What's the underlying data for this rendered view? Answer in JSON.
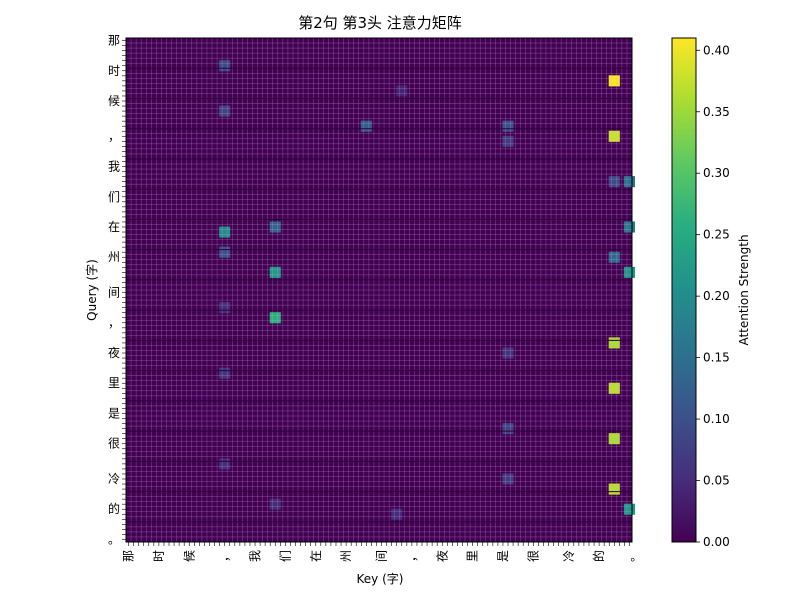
{
  "chart_data": {
    "type": "heatmap",
    "title": "第2句 第3头 注意力矩阵",
    "xlabel": "Key (字)",
    "ylabel": "Query (字)",
    "colorbar_label": "Attention Strength",
    "colormap": "viridis",
    "vmin": 0.0,
    "vmax": 0.41,
    "colorbar_ticks": [
      "0.00",
      "0.05",
      "0.10",
      "0.15",
      "0.20",
      "0.25",
      "0.30",
      "0.35",
      "0.40"
    ],
    "colorbar_tick_values": [
      0.0,
      0.05,
      0.1,
      0.15,
      0.2,
      0.25,
      0.3,
      0.35,
      0.4
    ],
    "grid": true,
    "cell_annotations": true,
    "matrix_size": 100,
    "baseline_value": 0.004,
    "notable_cells": [
      {
        "row": 8,
        "col": 96,
        "value": 0.41
      },
      {
        "row": 19,
        "col": 96,
        "value": 0.38
      },
      {
        "row": 60,
        "col": 96,
        "value": 0.36
      },
      {
        "row": 69,
        "col": 96,
        "value": 0.37
      },
      {
        "row": 79,
        "col": 96,
        "value": 0.36
      },
      {
        "row": 89,
        "col": 96,
        "value": 0.37
      },
      {
        "row": 55,
        "col": 29,
        "value": 0.26
      },
      {
        "row": 46,
        "col": 29,
        "value": 0.22
      },
      {
        "row": 38,
        "col": 19,
        "value": 0.2
      },
      {
        "row": 93,
        "col": 99,
        "value": 0.22
      },
      {
        "row": 46,
        "col": 99,
        "value": 0.21
      },
      {
        "row": 37,
        "col": 99,
        "value": 0.16
      },
      {
        "row": 28,
        "col": 99,
        "value": 0.15
      },
      {
        "row": 37,
        "col": 29,
        "value": 0.13
      },
      {
        "row": 43,
        "col": 96,
        "value": 0.14
      },
      {
        "row": 42,
        "col": 19,
        "value": 0.1
      },
      {
        "row": 14,
        "col": 19,
        "value": 0.08
      },
      {
        "row": 5,
        "col": 19,
        "value": 0.09
      },
      {
        "row": 17,
        "col": 47,
        "value": 0.12
      },
      {
        "row": 17,
        "col": 75,
        "value": 0.1
      },
      {
        "row": 20,
        "col": 75,
        "value": 0.07
      },
      {
        "row": 28,
        "col": 96,
        "value": 0.09
      },
      {
        "row": 77,
        "col": 75,
        "value": 0.08
      },
      {
        "row": 87,
        "col": 75,
        "value": 0.07
      },
      {
        "row": 62,
        "col": 75,
        "value": 0.06
      },
      {
        "row": 66,
        "col": 19,
        "value": 0.06
      },
      {
        "row": 84,
        "col": 19,
        "value": 0.05
      },
      {
        "row": 53,
        "col": 19,
        "value": 0.05
      },
      {
        "row": 92,
        "col": 29,
        "value": 0.05
      },
      {
        "row": 94,
        "col": 53,
        "value": 0.05
      },
      {
        "row": 10,
        "col": 54,
        "value": 0.04
      }
    ],
    "tick_labels_visible": [
      "那",
      "时",
      "候",
      "，",
      "我",
      "们",
      "在",
      "州",
      "间",
      "，",
      "夜",
      "里",
      "是",
      "很",
      "冷",
      "的",
      "。"
    ],
    "tick_labels_end": "。"
  }
}
